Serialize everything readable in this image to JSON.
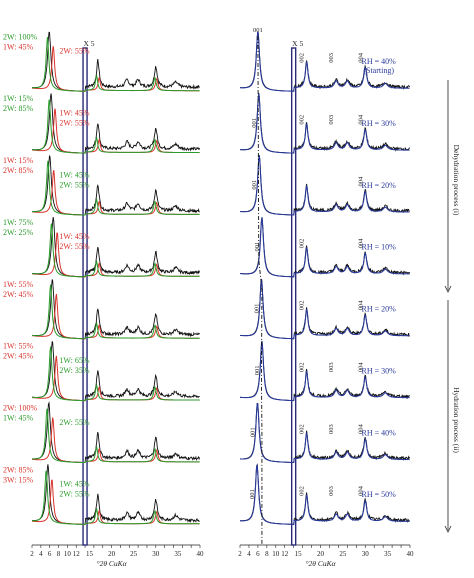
{
  "chart_data": [
    {
      "type": "line",
      "panel": "left",
      "xlabel": "°2θ CuKα",
      "xlim": [
        2,
        40
      ],
      "x_ticks": [
        "2",
        "4",
        "6",
        "8",
        "10",
        "12",
        "14",
        "16",
        "18",
        "20",
        "22",
        "24",
        "26",
        "28",
        "30",
        "32",
        "34",
        "36",
        "38",
        "40"
      ],
      "scale_marker": "X 5",
      "series": [
        {
          "name": "experimental",
          "color": "#000000"
        },
        {
          "name": "1W",
          "color": "#d8342c"
        },
        {
          "name": "2W",
          "color": "#2a9a2a"
        }
      ],
      "profiles": [
        {
          "labels": [
            {
              "text": "2W: 100%",
              "color": "green"
            },
            {
              "text": "1W: 45%",
              "color": "red"
            },
            {
              "text": "2W: 55%",
              "color": "red"
            }
          ]
        },
        {
          "labels": [
            {
              "text": "1W: 15%",
              "color": "green"
            },
            {
              "text": "2W: 85%",
              "color": "green"
            },
            {
              "text": "1W: 45%",
              "color": "red"
            },
            {
              "text": "2W: 55%",
              "color": "red"
            }
          ]
        },
        {
          "labels": [
            {
              "text": "1W: 15%",
              "color": "red"
            },
            {
              "text": "2W: 85%",
              "color": "red"
            },
            {
              "text": "1W: 45%",
              "color": "green"
            },
            {
              "text": "2W: 55%",
              "color": "green"
            }
          ]
        },
        {
          "labels": [
            {
              "text": "1W: 75%",
              "color": "green"
            },
            {
              "text": "2W: 25%",
              "color": "green"
            },
            {
              "text": "1W: 45%",
              "color": "red"
            },
            {
              "text": "2W: 55%",
              "color": "red"
            }
          ]
        },
        {
          "labels": [
            {
              "text": "1W: 55%",
              "color": "red"
            },
            {
              "text": "2W: 45%",
              "color": "red"
            }
          ]
        },
        {
          "labels": [
            {
              "text": "1W: 55%",
              "color": "red"
            },
            {
              "text": "2W: 45%",
              "color": "red"
            },
            {
              "text": "1W: 65%",
              "color": "green"
            },
            {
              "text": "2W: 35%",
              "color": "green"
            }
          ]
        },
        {
          "labels": [
            {
              "text": "2W: 100%",
              "color": "red"
            },
            {
              "text": "1W: 45%",
              "color": "green"
            },
            {
              "text": "2W: 55%",
              "color": "green"
            }
          ]
        },
        {
          "labels": [
            {
              "text": "2W: 85%",
              "color": "red"
            },
            {
              "text": "3W: 15%",
              "color": "red"
            },
            {
              "text": "1W: 45%",
              "color": "green"
            },
            {
              "text": "2W: 55%",
              "color": "green"
            }
          ]
        }
      ]
    },
    {
      "type": "line",
      "panel": "right",
      "xlabel": "°2θ CuKα",
      "xlim": [
        2,
        40
      ],
      "x_ticks": [
        "2",
        "4",
        "6",
        "8",
        "10",
        "12",
        "14",
        "16",
        "18",
        "20",
        "22",
        "24",
        "26",
        "28",
        "30",
        "32",
        "34",
        "36",
        "38",
        "40"
      ],
      "scale_marker": "X 5",
      "series": [
        {
          "name": "experimental",
          "color": "#000000"
        },
        {
          "name": "calculated",
          "color": "#2a3a9a"
        }
      ],
      "profiles": [
        {
          "rh": "RH = 40%",
          "note": "(Starting)",
          "peaks": [
            "001",
            "002",
            "003",
            "004"
          ]
        },
        {
          "rh": "RH = 30%",
          "peaks": [
            "001",
            "002",
            "003",
            "004"
          ]
        },
        {
          "rh": "RH = 20%",
          "peaks": [
            "001",
            "004"
          ]
        },
        {
          "rh": "RH = 10%",
          "peaks": [
            "001",
            "002",
            "004"
          ]
        },
        {
          "rh": "RH = 20%",
          "peaks": [
            "001",
            "002",
            "004"
          ]
        },
        {
          "rh": "RH = 30%",
          "peaks": [
            "001",
            "002",
            "003",
            "004"
          ]
        },
        {
          "rh": "RH = 40%",
          "peaks": [
            "001",
            "002",
            "003",
            "004"
          ]
        },
        {
          "rh": "RH = 50%",
          "peaks": [
            "001",
            "002",
            "003",
            "004"
          ]
        }
      ],
      "process_labels": [
        "Dehydration process (i)",
        "Hydration process (ii)"
      ]
    }
  ]
}
